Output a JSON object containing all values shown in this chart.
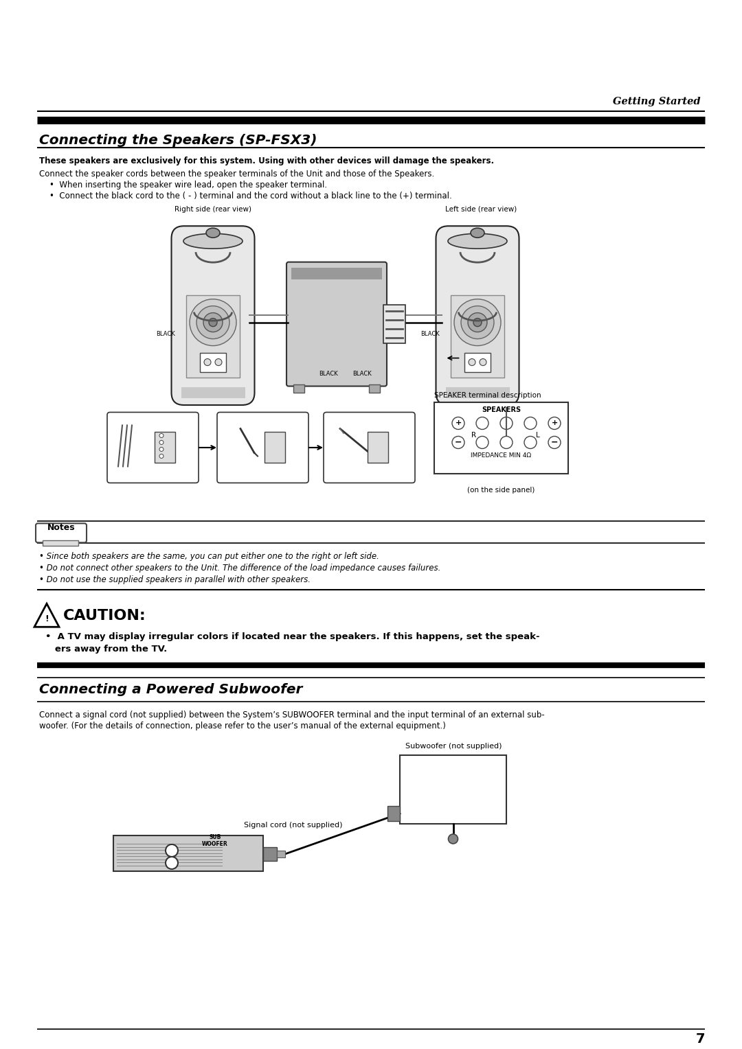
{
  "bg_color": "#ffffff",
  "page_number": "7",
  "header_text": "Getting Started",
  "sec1_title": "Connecting the Speakers (SP-FSX3)",
  "sec1_bold": "These speakers are exclusively for this system. Using with other devices will damage the speakers.",
  "sec1_body1": "Connect the speaker cords between the speaker terminals of the Unit and those of the Speakers.",
  "sec1_b1": "•  When inserting the speaker wire lead, open the speaker terminal.",
  "sec1_b2": "•  Connect the black cord to the ( - ) terminal and the cord without a black line to the (+) terminal.",
  "lbl_right": "Right side (rear view)",
  "lbl_left": "Left side (rear view)",
  "lbl_black": "BLACK",
  "lbl_spk_terminal": "SPEAKER terminal description",
  "lbl_speakers": "SPEAKERS",
  "lbl_R": "R",
  "lbl_L": "L",
  "lbl_impedance": "IMPEDANCE MIN 4Ω",
  "lbl_side_panel": "(on the side panel)",
  "notes_hdr": "Notes",
  "note1": "• Since both speakers are the same, you can put either one to the right or left side.",
  "note2": "• Do not connect other speakers to the Unit. The difference of the load impedance causes failures.",
  "note3": "• Do not use the supplied speakers in parallel with other speakers.",
  "caution_hdr": "CAUTION:",
  "caution_body1": "•  A TV may display irregular colors if located near the speakers. If this happens, set the speak-",
  "caution_body2": "   ers away from the TV.",
  "sec2_title": "Connecting a Powered Subwoofer",
  "sec2_body1": "Connect a signal cord (not supplied) between the System’s SUBWOOFER terminal and the input terminal of an external sub-",
  "sec2_body2": "woofer. (For the details of connection, please refer to the user’s manual of the external equipment.)",
  "lbl_subwoofer": "Subwoofer (not supplied)",
  "lbl_signal_cord": "Signal cord (not supplied)",
  "lbl_sub_woofer": "SUB\nWOOFER"
}
